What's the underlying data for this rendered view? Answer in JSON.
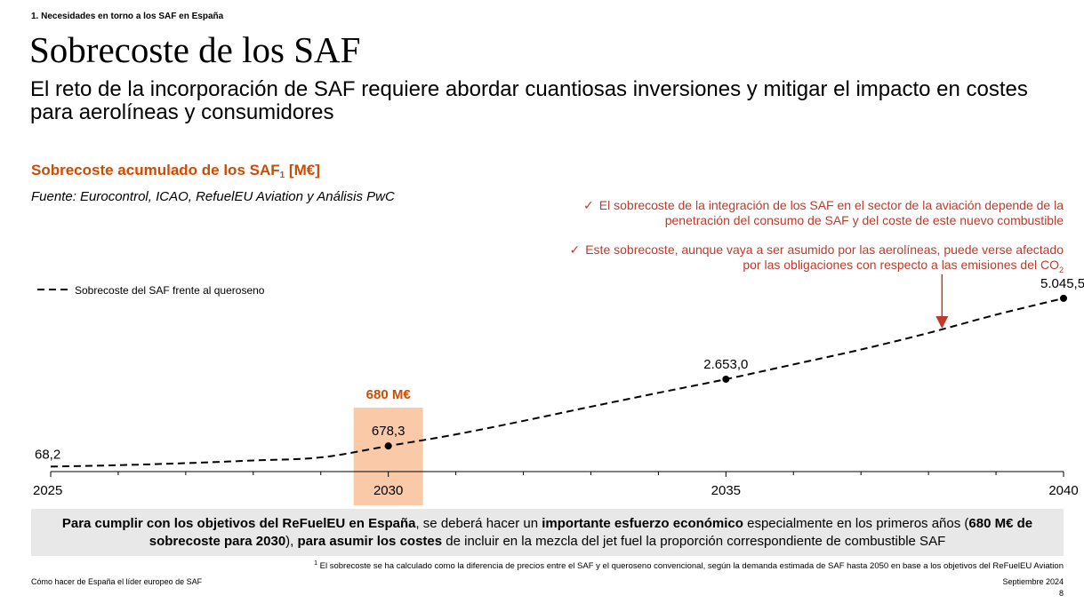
{
  "header": {
    "section": "1. Necesidades en torno a los SAF en España",
    "title": "Sobrecoste de los SAF",
    "subtitle": "El reto de la incorporación de SAF requiere abordar cuantiosas inversiones y mitigar el impacto en costes para aerolíneas y consumidores"
  },
  "chart_header": {
    "title": "Sobrecoste acumulado de los SAF",
    "title_sub": "1",
    "title_unit": "[M€]",
    "source": "Fuente: Eurocontrol, ICAO, RefuelEU Aviation y Análisis PwC"
  },
  "notes": [
    {
      "line1": "El sobrecoste de la integración de los SAF en el sector de la aviación depende de la",
      "line2": "penetración del consumo de SAF y del coste de este nuevo combustible"
    },
    {
      "line1": "Este sobrecoste, aunque vaya a ser asumido por las aerolíneas, puede verse afectado",
      "line2": "por las obligaciones con respecto a las emisiones del CO",
      "line2_sub": "2"
    }
  ],
  "chart_data": {
    "type": "line",
    "title": "Sobrecoste acumulado de los SAF [M€]",
    "series": [
      {
        "name": "Sobrecoste del SAF frente al queroseno",
        "style": "dashed",
        "color": "#000000",
        "x": [
          2025,
          2026,
          2027,
          2028,
          2029,
          2030,
          2031,
          2032,
          2033,
          2034,
          2035,
          2036,
          2037,
          2038,
          2039,
          2040
        ],
        "y": [
          68.2,
          110,
          170,
          250,
          340,
          678.3,
          1020,
          1420,
          1840,
          2250,
          2653.0,
          3090,
          3530,
          4020,
          4560,
          5045.5
        ]
      }
    ],
    "labeled_points": [
      {
        "x": 2025,
        "label": "68,2"
      },
      {
        "x": 2030,
        "label": "678,3"
      },
      {
        "x": 2035,
        "label": "2.653,0"
      },
      {
        "x": 2040,
        "label": "5.045,5"
      }
    ],
    "marker_x": [
      2030,
      2035,
      2040
    ],
    "x_ticks": [
      2025,
      2030,
      2035,
      2040
    ],
    "xlim": [
      2025,
      2040
    ],
    "ylim": [
      0,
      5200
    ],
    "highlight": {
      "x": 2030,
      "label": "680 M€",
      "color": "#f9c9a8",
      "label_color": "#d04a02"
    },
    "arrow_x": 2038.2,
    "arrow_color": "#c0392b",
    "legend_position": "top-left",
    "grid": false
  },
  "bottom_box": {
    "p1": "Para cumplir con los objetivos del ReFuelEU en España",
    "p2": ", se deberá hacer un ",
    "p3": "importante esfuerzo económico",
    "p4": " especialmente en los primeros años (",
    "p5": "680 M€ de sobrecoste para 2030",
    "p6": "), ",
    "p7": "para asumir los costes",
    "p8": " de incluir en la mezcla del jet fuel la proporción correspondiente de combustible SAF"
  },
  "footnote": {
    "marker": "1",
    "text": "El sobrecoste se ha calculado como la diferencia de precios entre el SAF y el queroseno convencional, según la demanda estimada de SAF hasta 2050 en base a los objetivos del ReFuelEU Aviation"
  },
  "footer": {
    "left": "Cómo hacer de España el líder europeo de SAF",
    "date": "Septiembre 2024",
    "page": "8"
  }
}
